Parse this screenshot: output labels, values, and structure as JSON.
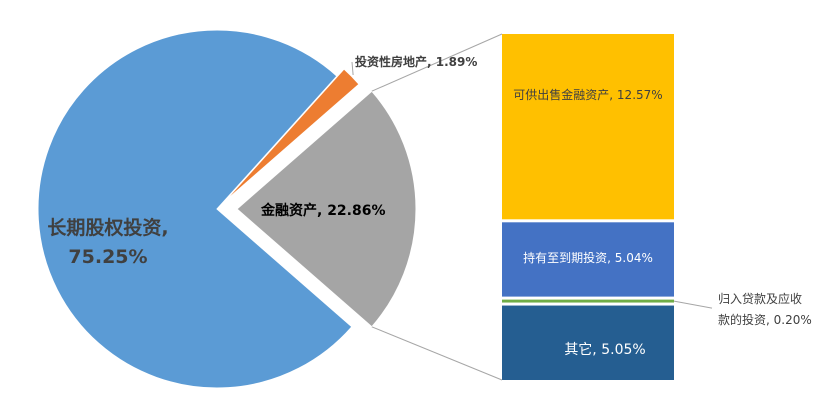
{
  "chart_data": {
    "type": "pie",
    "subtype": "pie-of-bar",
    "title": "",
    "pie": {
      "slices": [
        {
          "label": "长期股权投资",
          "value_text": "75.25%",
          "value": 75.25,
          "color": "#5B9BD5"
        },
        {
          "label": "投资性房地产",
          "value_text": "1.89%",
          "value": 1.89,
          "color": "#ED7D31"
        },
        {
          "label": "金融资产",
          "value_text": "22.86%",
          "value": 22.86,
          "color": "#A5A5A5"
        }
      ]
    },
    "bar": {
      "parent": "金融资产",
      "segments": [
        {
          "label": "可供出售金融资产",
          "value_text": "12.57%",
          "value": 12.57,
          "color": "#FFC000"
        },
        {
          "label": "持有至到期投资",
          "value_text": "5.04%",
          "value": 5.04,
          "color": "#4472C4"
        },
        {
          "label": "归入贷款及应收款的投资",
          "value_text": "0.20%",
          "value": 0.2,
          "color": "#70AD47"
        },
        {
          "label": "其它",
          "value_text": "5.05%",
          "value": 5.05,
          "color": "#255E91"
        }
      ]
    },
    "labels": {
      "long_term_label": "长期股权投资,",
      "long_term_value": "75.25%",
      "real_estate": "投资性房地产, 1.89%",
      "financial": "金融资产, 22.86%",
      "afs": "可供出售金融资产, 12.57%",
      "htm": "持有至到期投资, 5.04%",
      "loans_line1": "归入贷款及应收",
      "loans_line2": "款的投资, 0.20%",
      "other": "其它, 5.05%"
    }
  }
}
